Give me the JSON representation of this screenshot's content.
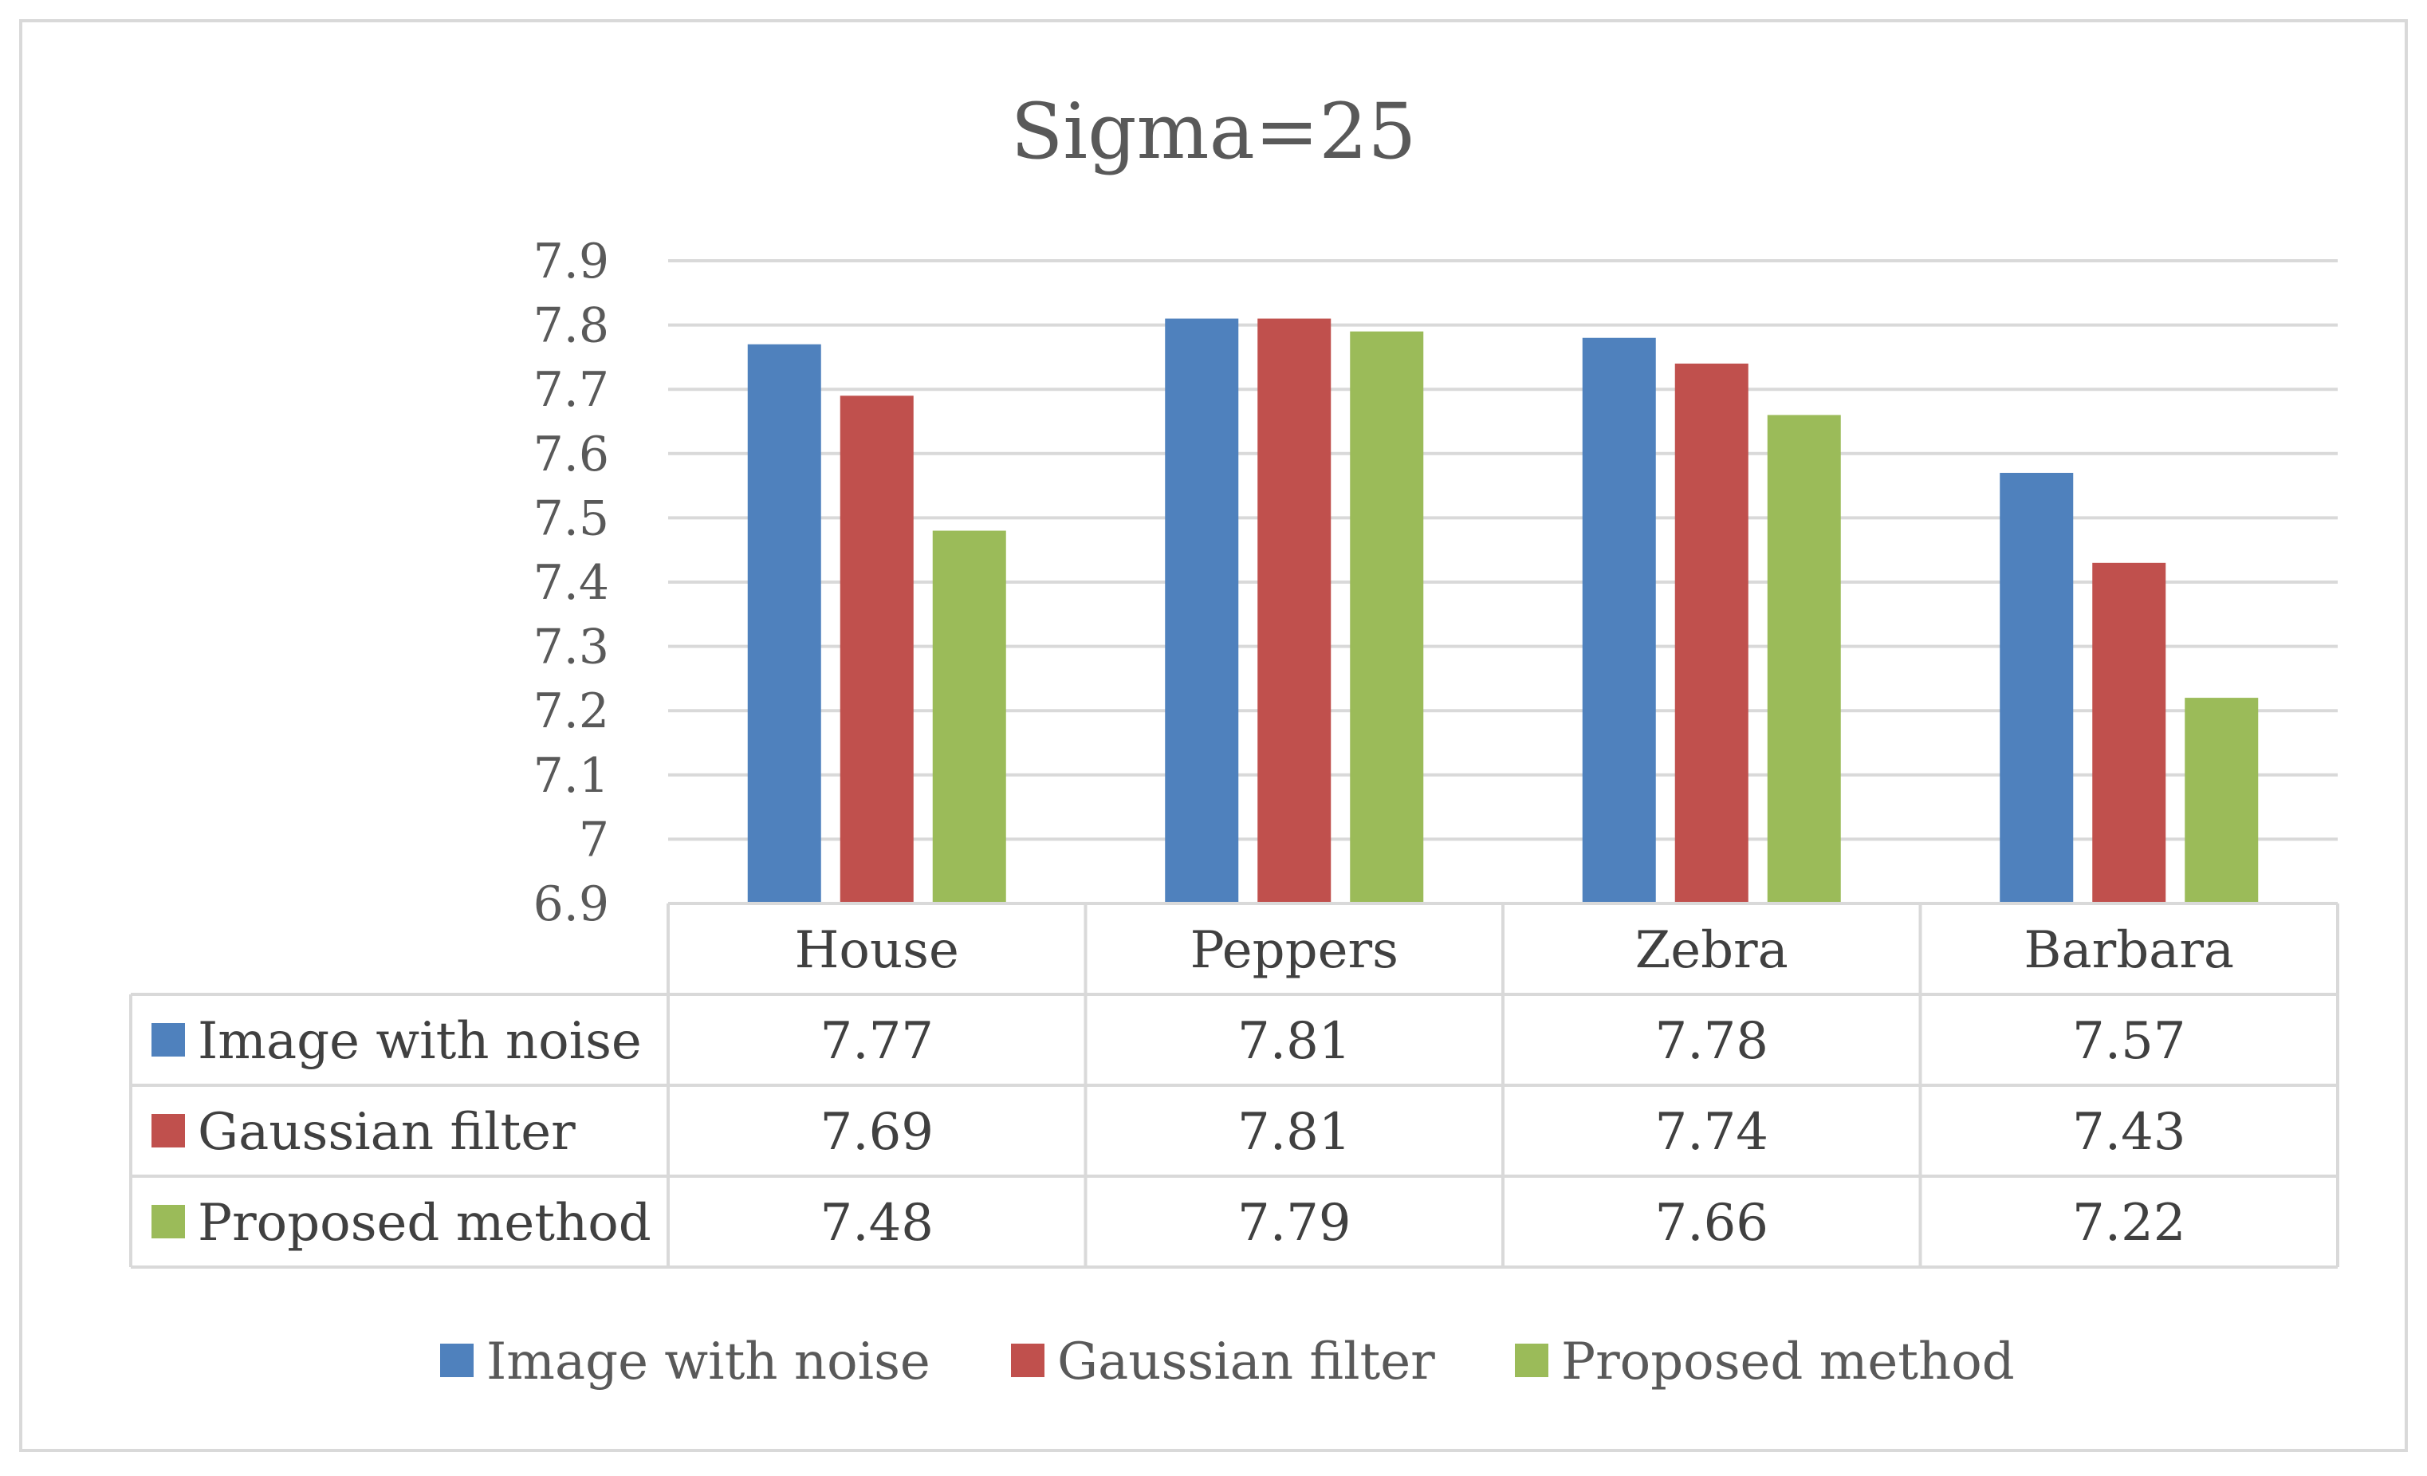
{
  "chart_data": {
    "type": "bar",
    "title": "Sigma=25",
    "xlabel": "",
    "ylabel": "",
    "ylim": [
      6.9,
      7.9
    ],
    "yticks": [
      "6.9",
      "7",
      "7.1",
      "7.2",
      "7.3",
      "7.4",
      "7.5",
      "7.6",
      "7.7",
      "7.8",
      "7.9"
    ],
    "categories": [
      "House",
      "Peppers",
      "Zebra",
      "Barbara"
    ],
    "series": [
      {
        "name": "Image with noise",
        "color": "#4F81BD",
        "values": [
          7.77,
          7.81,
          7.78,
          7.57
        ],
        "labels": [
          "7.77",
          "7.81",
          "7.78",
          "7.57"
        ]
      },
      {
        "name": "Gaussian filter",
        "color": "#C0504D",
        "values": [
          7.69,
          7.81,
          7.74,
          7.43
        ],
        "labels": [
          "7.69",
          "7.81",
          "7.74",
          "7.43"
        ]
      },
      {
        "name": "Proposed method",
        "color": "#9BBB59",
        "values": [
          7.48,
          7.79,
          7.66,
          7.22
        ],
        "labels": [
          "7.48",
          "7.79",
          "7.66",
          "7.22"
        ]
      }
    ],
    "grid": true,
    "legend": "bottom",
    "data_table": true
  }
}
